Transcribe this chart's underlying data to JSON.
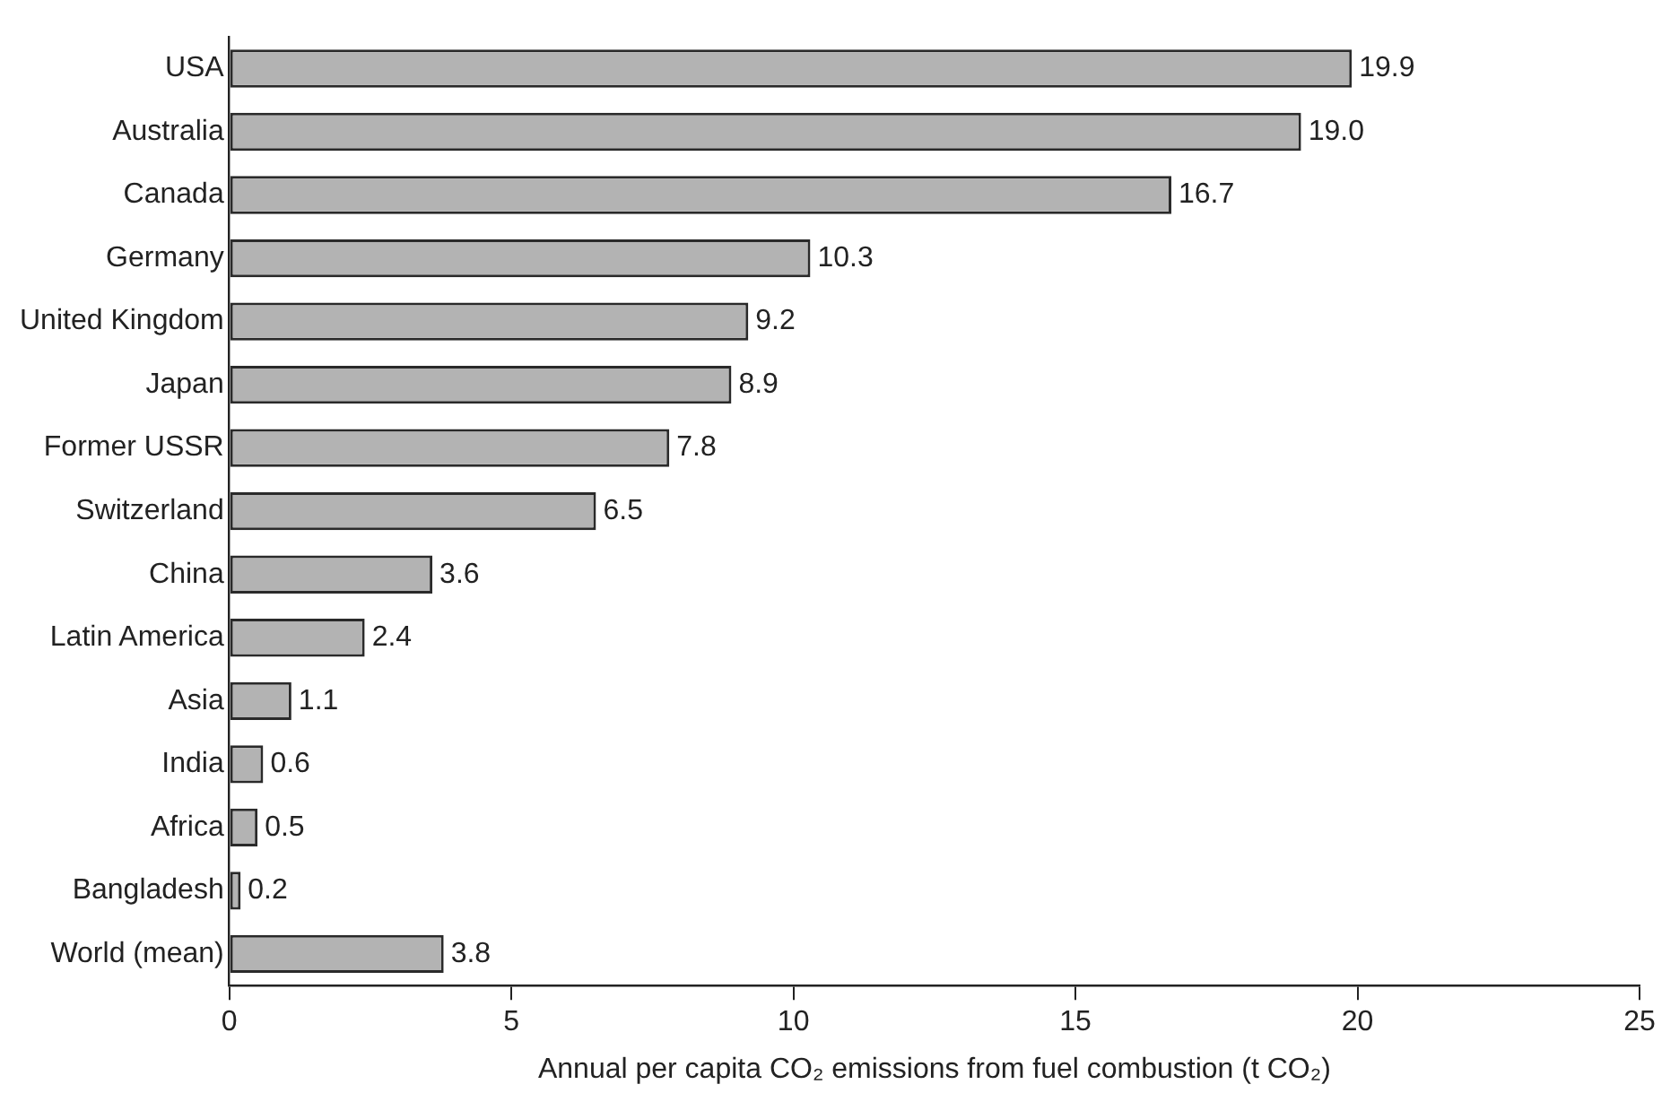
{
  "chart_data": {
    "type": "bar",
    "orientation": "horizontal",
    "categories": [
      "USA",
      "Australia",
      "Canada",
      "Germany",
      "United Kingdom",
      "Japan",
      "Former USSR",
      "Switzerland",
      "China",
      "Latin America",
      "Asia",
      "India",
      "Africa",
      "Bangladesh",
      "World (mean)"
    ],
    "values": [
      19.9,
      19.0,
      16.7,
      10.3,
      9.2,
      8.9,
      7.8,
      6.5,
      3.6,
      2.4,
      1.1,
      0.6,
      0.5,
      0.2,
      3.8
    ],
    "value_labels": [
      "19.9",
      "19.0",
      "16.7",
      "10.3",
      "9.2",
      "8.9",
      "7.8",
      "6.5",
      "3.6",
      "2.4",
      "1.1",
      "0.6",
      "0.5",
      "0.2",
      "3.8"
    ],
    "color": "#b3b3b3",
    "xlim": [
      0,
      25
    ],
    "xticks": [
      0,
      5,
      10,
      15,
      20,
      25
    ],
    "xlabel": "Annual per capita CO₂ emissions from fuel combustion (t CO₂)",
    "grid": false,
    "legend": false
  }
}
